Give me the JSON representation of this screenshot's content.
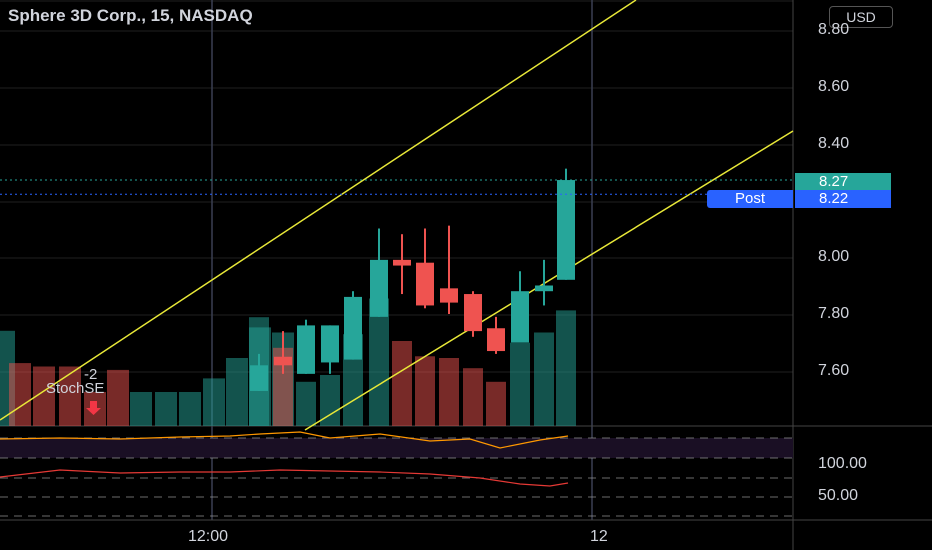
{
  "header": {
    "title": "Sphere 3D Corp., 15, NASDAQ",
    "currency": "USD"
  },
  "price_axis": {
    "ticks": [
      "8.80",
      "8.60",
      "8.40",
      "8.00",
      "7.80",
      "7.60"
    ]
  },
  "indicator_axis": {
    "ticks": [
      "100.00",
      "50.00"
    ]
  },
  "time_axis": {
    "ticks": [
      "12:00",
      "12"
    ]
  },
  "tags": {
    "last_price": "8.27",
    "post_label": "Post",
    "post_price": "8.22"
  },
  "signal": {
    "count": "-2",
    "name": "StochSE"
  },
  "colors": {
    "up": "#26a69a",
    "down": "#ef5350",
    "trendline": "#e8e838",
    "post": "#2962ff",
    "stoch": "#ff9800",
    "stoch2": "#e53935"
  },
  "chart_data": {
    "type": "candlestick",
    "symbol": "Sphere 3D Corp.",
    "interval": "15",
    "exchange": "NASDAQ",
    "ylim": [
      7.42,
      8.91
    ],
    "candles": [
      {
        "o": 7.53,
        "h": 7.66,
        "l": 7.53,
        "c": 7.62,
        "v": 0.64
      },
      {
        "o": 7.65,
        "h": 7.74,
        "l": 7.59,
        "c": 7.62,
        "v": 0.46
      },
      {
        "o": 7.59,
        "h": 7.78,
        "l": 7.59,
        "c": 7.76,
        "v": 0.26
      },
      {
        "o": 7.63,
        "h": 7.76,
        "l": 7.59,
        "c": 7.76,
        "v": 0.3
      },
      {
        "o": 7.64,
        "h": 7.88,
        "l": 7.64,
        "c": 7.86,
        "v": 0.54
      },
      {
        "o": 7.79,
        "h": 8.1,
        "l": 7.79,
        "c": 7.99,
        "v": 0.75
      },
      {
        "o": 7.99,
        "h": 8.08,
        "l": 7.87,
        "c": 7.97,
        "v": 0.5
      },
      {
        "o": 7.98,
        "h": 8.1,
        "l": 7.82,
        "c": 7.83,
        "v": 0.41
      },
      {
        "o": 7.89,
        "h": 8.11,
        "l": 7.8,
        "c": 7.84,
        "v": 0.4
      },
      {
        "o": 7.87,
        "h": 7.88,
        "l": 7.72,
        "c": 7.74,
        "v": 0.34
      },
      {
        "o": 7.75,
        "h": 7.79,
        "l": 7.66,
        "c": 7.67,
        "v": 0.26
      },
      {
        "o": 7.7,
        "h": 7.95,
        "l": 7.7,
        "c": 7.88,
        "v": 0.49
      },
      {
        "o": 7.88,
        "h": 7.99,
        "l": 7.83,
        "c": 7.9,
        "v": 0.55
      },
      {
        "o": 7.92,
        "h": 8.31,
        "l": 7.92,
        "c": 8.27,
        "v": 0.68
      }
    ],
    "volume_left": [
      0.56,
      0.37,
      0.35,
      0.35,
      0.2,
      0.33,
      0.2,
      0.2,
      0.2,
      0.28,
      0.4,
      0.58,
      0.55
    ],
    "last_price": 8.27,
    "post_price": 8.22,
    "indicator_ticks": [
      100.0,
      50.0
    ],
    "x_ticks": [
      "12:00",
      "12"
    ]
  }
}
